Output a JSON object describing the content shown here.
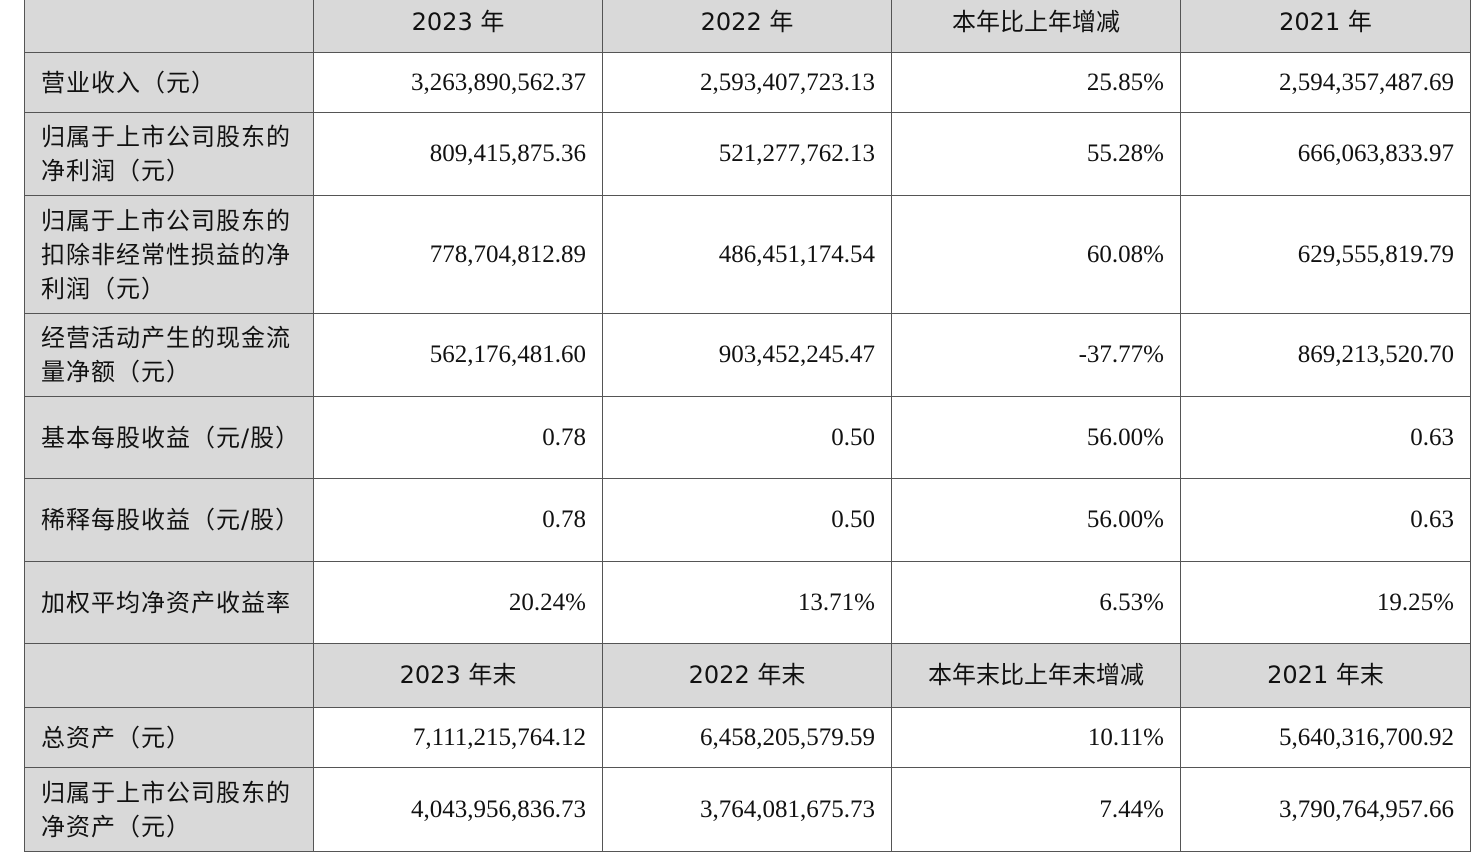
{
  "header1": {
    "col1": "2023 年",
    "col2": "2022 年",
    "col3": "本年比上年增减",
    "col4": "2021 年"
  },
  "section1_rows": [
    {
      "label": "营业收入（元）",
      "v2023": "3,263,890,562.37",
      "v2022": "2,593,407,723.13",
      "change": "25.85%",
      "v2021": "2,594,357,487.69"
    },
    {
      "label": "归属于上市公司股东的净利润（元）",
      "v2023": "809,415,875.36",
      "v2022": "521,277,762.13",
      "change": "55.28%",
      "v2021": "666,063,833.97"
    },
    {
      "label": "归属于上市公司股东的扣除非经常性损益的净利润（元）",
      "v2023": "778,704,812.89",
      "v2022": "486,451,174.54",
      "change": "60.08%",
      "v2021": "629,555,819.79"
    },
    {
      "label": "经营活动产生的现金流量净额（元）",
      "v2023": "562,176,481.60",
      "v2022": "903,452,245.47",
      "change": "-37.77%",
      "v2021": "869,213,520.70"
    },
    {
      "label": "基本每股收益（元/股）",
      "v2023": "0.78",
      "v2022": "0.50",
      "change": "56.00%",
      "v2021": "0.63"
    },
    {
      "label": "稀释每股收益（元/股）",
      "v2023": "0.78",
      "v2022": "0.50",
      "change": "56.00%",
      "v2021": "0.63"
    },
    {
      "label": "加权平均净资产收益率",
      "v2023": "20.24%",
      "v2022": "13.71%",
      "change": "6.53%",
      "v2021": "19.25%"
    }
  ],
  "header2": {
    "col1": "2023 年末",
    "col2": "2022 年末",
    "col3": "本年末比上年末增减",
    "col4": "2021 年末"
  },
  "section2_rows": [
    {
      "label": "总资产（元）",
      "v2023": "7,111,215,764.12",
      "v2022": "6,458,205,579.59",
      "change": "10.11%",
      "v2021": "5,640,316,700.92"
    },
    {
      "label": "归属于上市公司股东的净资产（元）",
      "v2023": "4,043,956,836.73",
      "v2022": "3,764,081,675.73",
      "change": "7.44%",
      "v2021": "3,790,764,957.66"
    }
  ]
}
